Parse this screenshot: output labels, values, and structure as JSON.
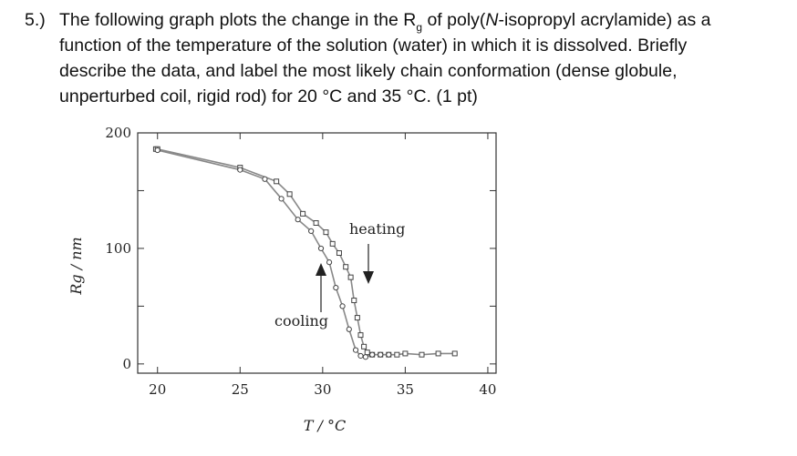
{
  "question": {
    "number": "5.)",
    "line1_pre": "The following graph plots the change in the R",
    "line1_sub": "g",
    "line1_mid": " of poly(",
    "line1_ital": "N",
    "line1_post": "-isopropyl acrylamide) as a",
    "line2": "function of the temperature of the solution (water) in which it is dissolved. Briefly",
    "line3": "describe the data, and label the most likely chain conformation (dense globule,",
    "line4": "unperturbed coil, rigid rod) for 20 °C and 35 °C. (1 pt)"
  },
  "chart_data": {
    "type": "line",
    "xlabel": "T / °C",
    "ylabel": "Rg / nm",
    "xlim": [
      18.8,
      40.5
    ],
    "ylim": [
      -8,
      200
    ],
    "xticks": [
      20,
      25,
      30,
      35,
      40
    ],
    "yticks": [
      0,
      100,
      200
    ],
    "grid": false,
    "colors": {
      "curve": "#888888",
      "marker": "#444444",
      "axis": "#333333"
    },
    "series": [
      {
        "name": "heating",
        "marker": "square",
        "x": [
          19.9,
          20.0,
          25.0,
          27.2,
          28.0,
          28.8,
          29.6,
          30.2,
          30.6,
          31.0,
          31.4,
          31.7,
          31.9,
          32.1,
          32.3,
          32.5,
          32.7,
          33.0,
          33.5,
          34.0,
          34.5,
          35.0,
          36.0,
          37.0,
          38.0
        ],
        "y": [
          186,
          186,
          170,
          158,
          147,
          130,
          122,
          114,
          104,
          96,
          84,
          75,
          55,
          40,
          25,
          15,
          10,
          8,
          8,
          8,
          8,
          9,
          8,
          9,
          9
        ]
      },
      {
        "name": "cooling",
        "marker": "circle",
        "x": [
          20.0,
          25.0,
          26.5,
          27.5,
          28.5,
          29.3,
          29.9,
          30.4,
          30.8,
          31.2,
          31.6,
          32.0,
          32.3,
          32.6,
          33.0,
          33.5,
          34.0
        ],
        "y": [
          185,
          168,
          160,
          143,
          125,
          115,
          100,
          88,
          66,
          50,
          30,
          12,
          7,
          6,
          8,
          8,
          8
        ]
      }
    ],
    "annotations": [
      {
        "text": "heating",
        "arrow": "down"
      },
      {
        "text": "cooling",
        "arrow": "up"
      }
    ]
  }
}
